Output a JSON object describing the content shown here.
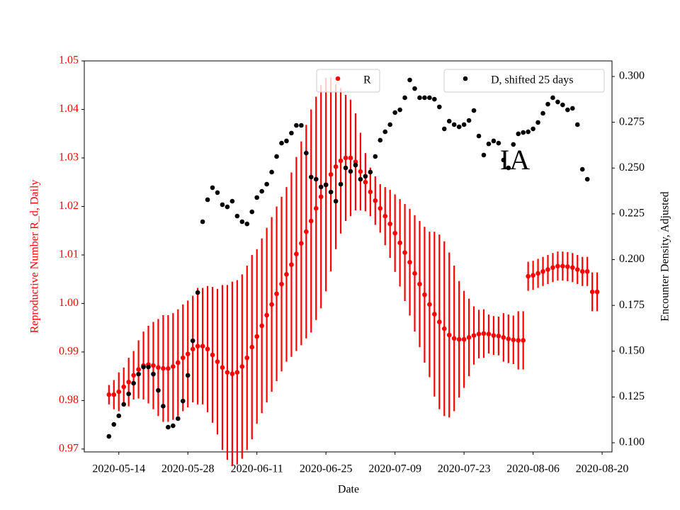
{
  "chart_data": {
    "type": "errorbar-scatter",
    "annotation": "IA",
    "x_label": "Date",
    "y_label": "Reproductive Number R_d, Daily",
    "y2_label": "Encounter Density, Adjusted",
    "xlim": [
      "2020-05-07",
      "2020-08-22"
    ],
    "xticks": [
      "2020-05-14",
      "2020-05-28",
      "2020-06-11",
      "2020-06-25",
      "2020-07-09",
      "2020-07-23",
      "2020-08-06",
      "2020-08-20"
    ],
    "ylim": [
      0.9694,
      1.05
    ],
    "yticks": [
      0.97,
      0.98,
      0.99,
      {
        "value": 1,
        "label": "1.00"
      },
      1.01,
      1.02,
      1.03,
      1.04,
      1.05
    ],
    "y2lim": [
      0.095,
      0.3085
    ],
    "y2ticks": [
      {
        "value": 0.1,
        "label": "0.100"
      },
      0.125,
      {
        "value": 0.15,
        "label": "0.150"
      },
      0.175,
      {
        "value": 0.2,
        "label": "0.200"
      },
      0.225,
      {
        "value": 0.25,
        "label": "0.250"
      },
      0.275,
      {
        "value": 0.3,
        "label": "0.300"
      }
    ],
    "x": [
      "2020-05-12",
      "2020-05-13",
      "2020-05-14",
      "2020-05-15",
      "2020-05-16",
      "2020-05-17",
      "2020-05-18",
      "2020-05-19",
      "2020-05-20",
      "2020-05-21",
      "2020-05-22",
      "2020-05-23",
      "2020-05-24",
      "2020-05-25",
      "2020-05-26",
      "2020-05-27",
      "2020-05-28",
      "2020-05-29",
      "2020-05-30",
      "2020-05-31",
      "2020-06-01",
      "2020-06-02",
      "2020-06-03",
      "2020-06-04",
      "2020-06-05",
      "2020-06-06",
      "2020-06-07",
      "2020-06-08",
      "2020-06-09",
      "2020-06-10",
      "2020-06-11",
      "2020-06-12",
      "2020-06-13",
      "2020-06-14",
      "2020-06-15",
      "2020-06-16",
      "2020-06-17",
      "2020-06-18",
      "2020-06-19",
      "2020-06-20",
      "2020-06-21",
      "2020-06-22",
      "2020-06-23",
      "2020-06-24",
      "2020-06-25",
      "2020-06-26",
      "2020-06-27",
      "2020-06-28",
      "2020-06-29",
      "2020-06-30",
      "2020-07-01",
      "2020-07-02",
      "2020-07-03",
      "2020-07-04",
      "2020-07-05",
      "2020-07-06",
      "2020-07-07",
      "2020-07-08",
      "2020-07-09",
      "2020-07-10",
      "2020-07-11",
      "2020-07-12",
      "2020-07-13",
      "2020-07-14",
      "2020-07-15",
      "2020-07-16",
      "2020-07-17",
      "2020-07-18",
      "2020-07-19",
      "2020-07-20",
      "2020-07-21",
      "2020-07-22",
      "2020-07-23",
      "2020-07-24",
      "2020-07-25",
      "2020-07-26",
      "2020-07-27",
      "2020-07-28",
      "2020-07-29",
      "2020-07-30",
      "2020-07-31",
      "2020-08-01",
      "2020-08-02",
      "2020-08-03",
      "2020-08-04",
      "2020-08-05",
      "2020-08-06",
      "2020-08-07",
      "2020-08-08",
      "2020-08-09",
      "2020-08-10",
      "2020-08-11",
      "2020-08-12",
      "2020-08-13",
      "2020-08-14",
      "2020-08-15",
      "2020-08-16",
      "2020-08-17",
      "2020-08-18",
      "2020-08-19"
    ],
    "series": [
      {
        "name": "R",
        "color": "#ff0000",
        "axis": "y",
        "values": [
          0.9812,
          0.9812,
          0.9818,
          0.9828,
          0.9838,
          0.9852,
          0.9864,
          0.9872,
          0.9874,
          0.9872,
          0.9868,
          0.9866,
          0.9866,
          0.987,
          0.9878,
          0.9888,
          0.9896,
          0.9906,
          0.9912,
          0.9912,
          0.9906,
          0.9894,
          0.988,
          0.9868,
          0.9858,
          0.9855,
          0.9858,
          0.987,
          0.9888,
          0.991,
          0.9932,
          0.9954,
          0.9976,
          0.9998,
          1.002,
          1.004,
          1.006,
          1.008,
          1.0102,
          1.0124,
          1.0148,
          1.017,
          1.0196,
          1.022,
          1.0245,
          1.0266,
          1.0282,
          1.0294,
          1.03,
          1.03,
          1.0292,
          1.0272,
          1.025,
          1.023,
          1.0212,
          1.0196,
          1.018,
          1.0164,
          1.0145,
          1.0125,
          1.0105,
          1.0085,
          1.0062,
          1.004,
          1.0018,
          0.9998,
          0.9978,
          0.9962,
          0.9948,
          0.9935,
          0.9928,
          0.9926,
          0.9926,
          0.993,
          0.9934,
          0.9937,
          0.9938,
          0.9937,
          0.9934,
          0.9933,
          0.993,
          0.9927,
          0.9925,
          0.9924,
          0.9924,
          1.0056,
          1.0058,
          1.0062,
          1.0066,
          1.007,
          1.0074,
          1.0077,
          1.0077,
          1.0076,
          1.0074,
          1.007,
          1.0066,
          1.0066,
          1.0024,
          1.0024
        ],
        "errors": [
          0.002,
          0.003,
          0.004,
          0.004,
          0.005,
          0.005,
          0.006,
          0.007,
          0.008,
          0.009,
          0.01,
          0.011,
          0.011,
          0.011,
          0.011,
          0.011,
          0.011,
          0.011,
          0.012,
          0.012,
          0.013,
          0.014,
          0.015,
          0.017,
          0.018,
          0.019,
          0.019,
          0.019,
          0.019,
          0.019,
          0.018,
          0.018,
          0.018,
          0.018,
          0.018,
          0.018,
          0.018,
          0.019,
          0.02,
          0.021,
          0.022,
          0.023,
          0.023,
          0.023,
          0.022,
          0.02,
          0.017,
          0.015,
          0.013,
          0.012,
          0.01,
          0.008,
          0.006,
          0.005,
          0.005,
          0.005,
          0.006,
          0.007,
          0.008,
          0.009,
          0.01,
          0.011,
          0.012,
          0.013,
          0.014,
          0.015,
          0.017,
          0.018,
          0.018,
          0.017,
          0.015,
          0.012,
          0.01,
          0.008,
          0.006,
          0.005,
          0.005,
          0.004,
          0.004,
          0.004,
          0.005,
          0.005,
          0.005,
          0.006,
          0.006,
          0.003,
          0.003,
          0.003,
          0.003,
          0.003,
          0.003,
          0.003,
          0.003,
          0.003,
          0.003,
          0.003,
          0.003,
          0.003,
          0.004,
          0.004
        ]
      },
      {
        "name": "D, shifted 25 days",
        "color": "#000000",
        "axis": "y2",
        "values": [
          0.1035,
          0.11,
          0.1147,
          0.121,
          0.1267,
          0.1325,
          0.1375,
          0.1414,
          0.1414,
          0.1375,
          0.1286,
          0.12,
          0.1085,
          0.1093,
          0.1132,
          0.1228,
          0.1368,
          0.1557,
          0.182,
          0.2207,
          0.2327,
          0.2393,
          0.2366,
          0.23,
          0.2288,
          0.2319,
          0.2238,
          0.2207,
          0.2195,
          0.2261,
          0.2339,
          0.2373,
          0.2412,
          0.2478,
          0.2563,
          0.2636,
          0.2648,
          0.2691,
          0.2733,
          0.2733,
          0.2582,
          0.2451,
          0.2439,
          0.2397,
          0.2408,
          0.2369,
          0.2319,
          0.2412,
          0.2501,
          0.2482,
          0.2516,
          0.2439,
          0.2455,
          0.2478,
          0.2563,
          0.2652,
          0.2698,
          0.2737,
          0.2803,
          0.2818,
          0.2884,
          0.2981,
          0.2934,
          0.2884,
          0.2884,
          0.2884,
          0.2876,
          0.2834,
          0.2714,
          0.2756,
          0.2737,
          0.2725,
          0.2737,
          0.276,
          0.2814,
          0.2675,
          0.2571,
          0.2632,
          0.2648,
          0.2636,
          0.2544,
          0.2501,
          0.2629,
          0.2687,
          0.2694,
          0.2698,
          0.2714,
          0.2749,
          0.2799,
          0.2849,
          0.2884,
          0.2861,
          0.2845,
          0.2818,
          0.2826,
          0.2737,
          0.2493,
          0.2439,
          null,
          null
        ]
      }
    ]
  }
}
